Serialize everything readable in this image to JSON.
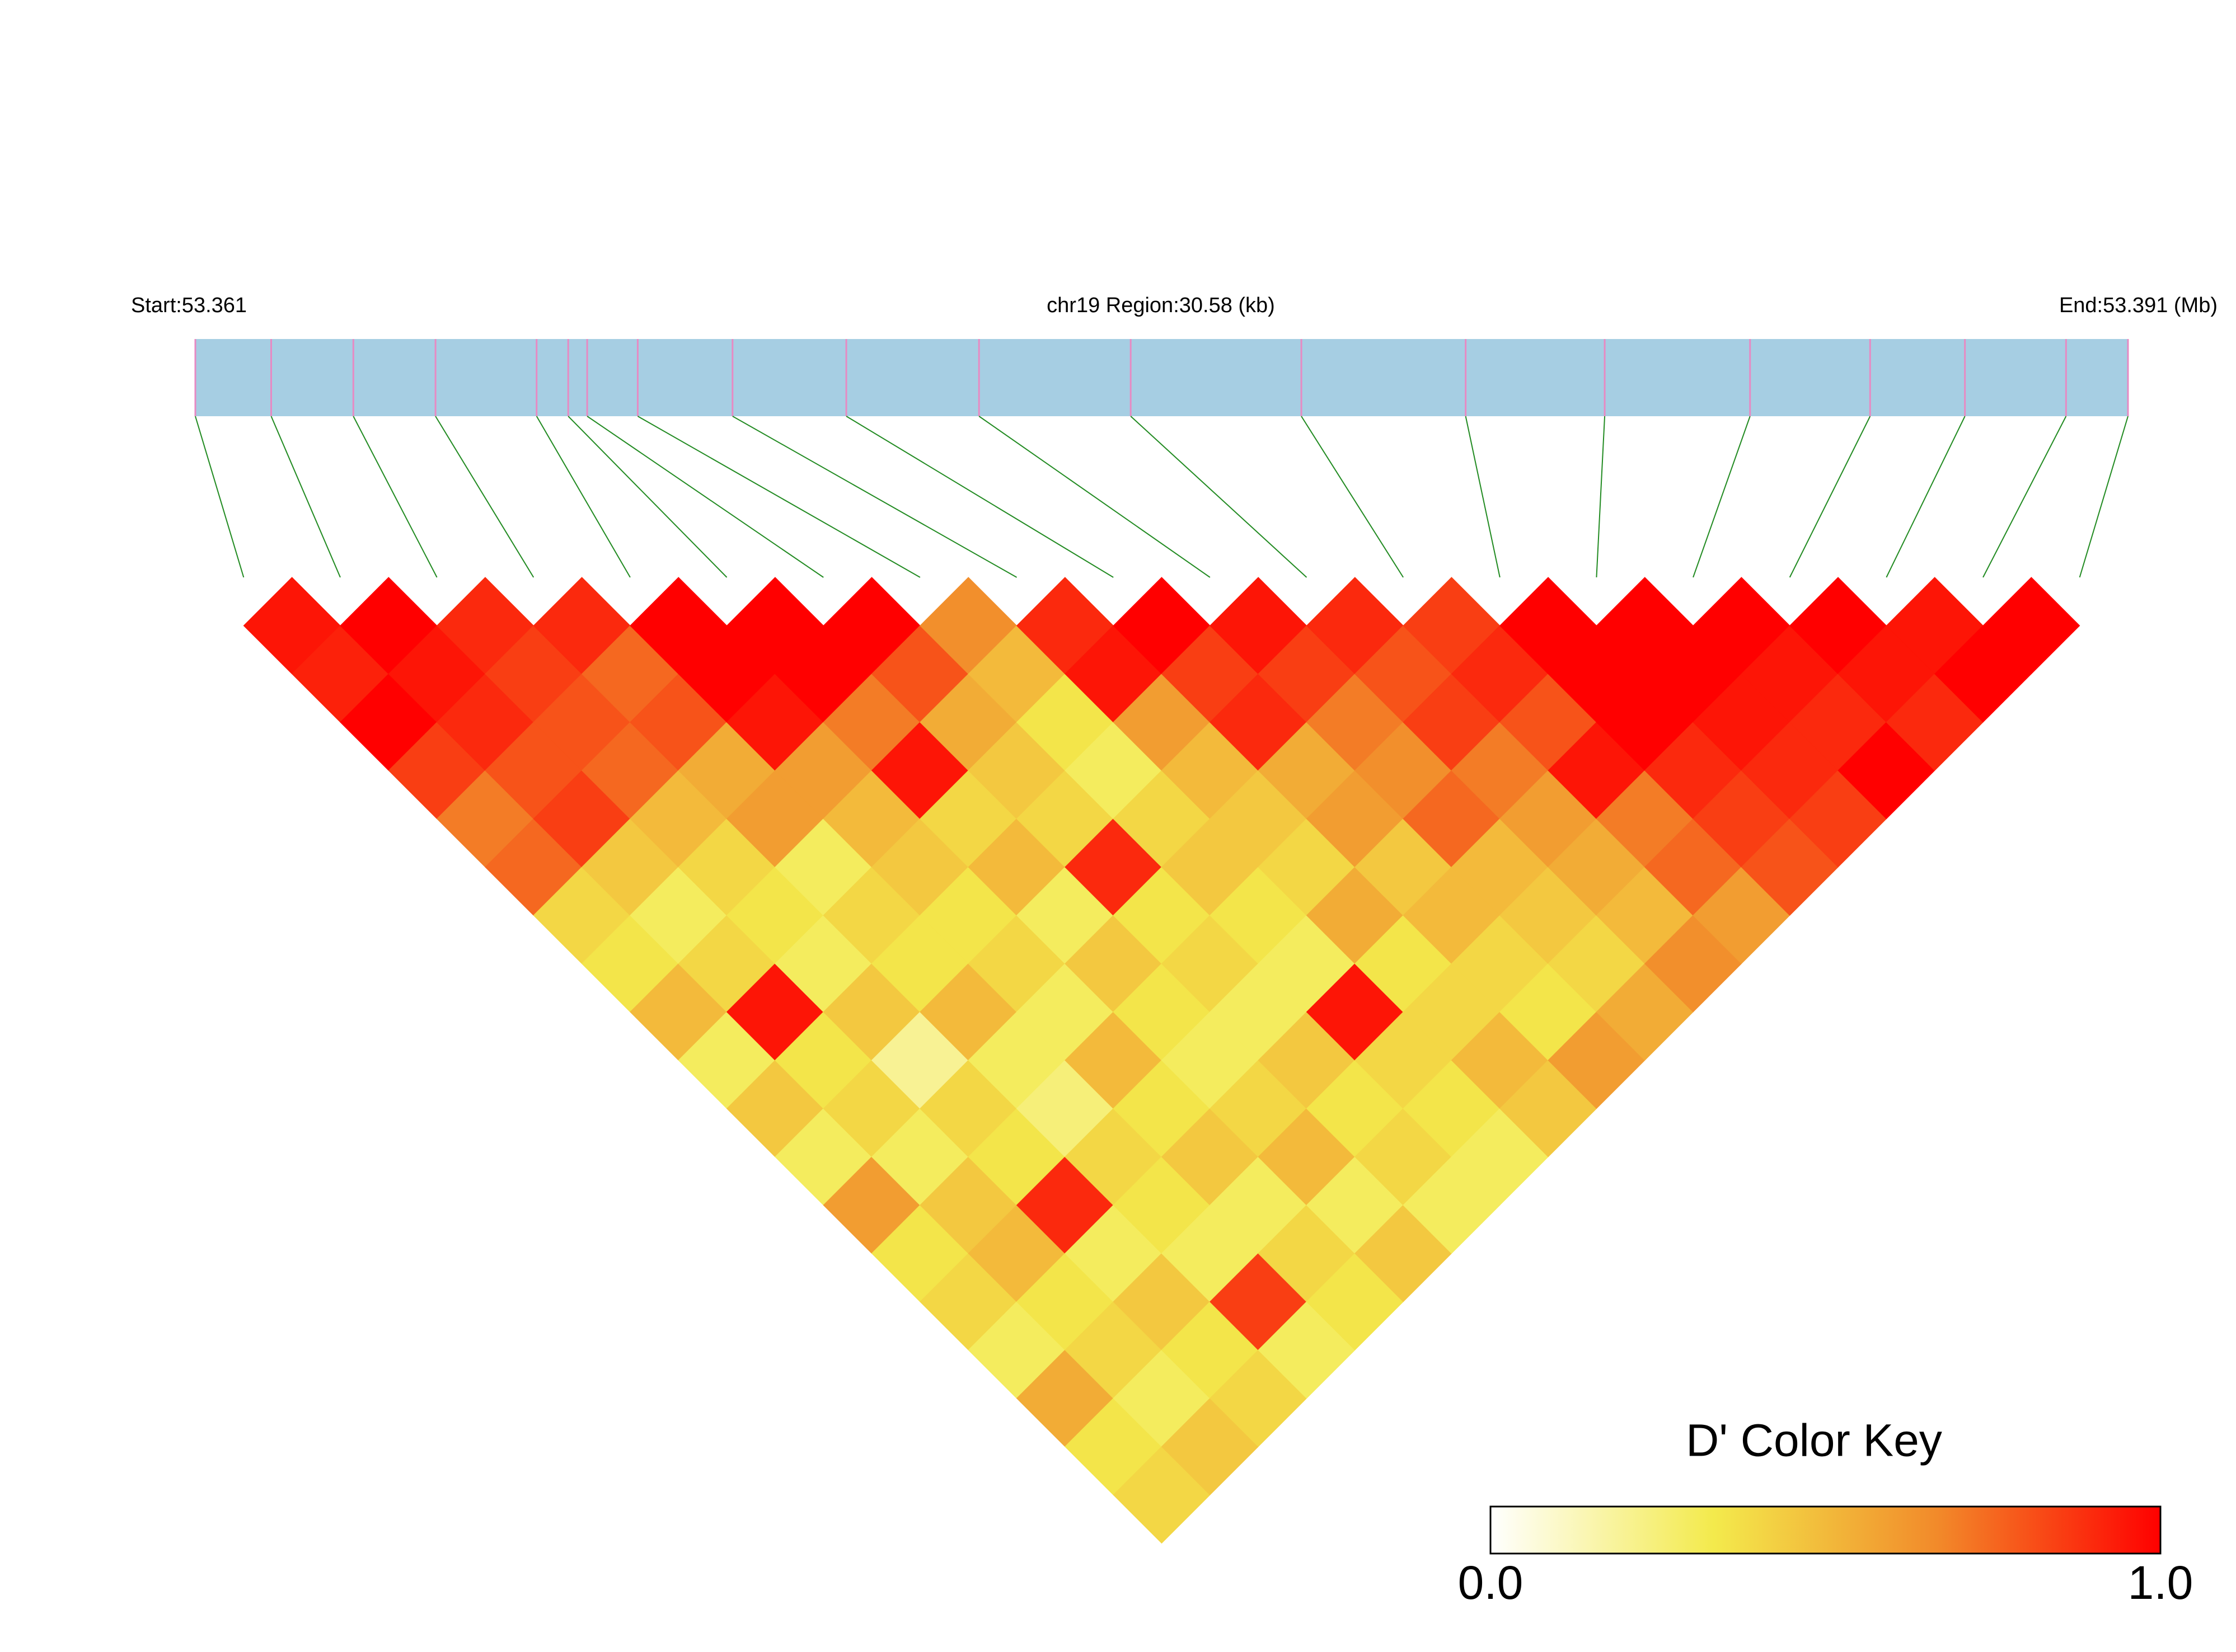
{
  "chart_data": {
    "type": "ld_heatmap",
    "start_label": "Start:53.361",
    "region_label": "chr19 Region:30.58 (kb)",
    "end_label": "End:53.391 (Mb)",
    "colorbar_title": "D' Color Key",
    "clim": [
      0,
      1
    ],
    "cticks": [
      {
        "value": 0,
        "label": "0.0"
      },
      {
        "value": 1,
        "label": "1.0"
      }
    ],
    "colormap": [
      "#ffffff",
      "#f3ea4c",
      "#f28a2a",
      "#ff0000"
    ],
    "track_color": "#a6cee3",
    "snp_color": "#e78ac3",
    "link_color": "#228b22",
    "xlim": [
      0,
      30.58
    ],
    "snp_positions": [
      0,
      1.2,
      2.5,
      3.8,
      5.4,
      5.9,
      6.2,
      7.0,
      8.5,
      10.3,
      12.4,
      14.8,
      17.5,
      20.1,
      22.3,
      24.6,
      26.5,
      28.0,
      29.6,
      30.58
    ],
    "values": [
      [
        0.95,
        0.92,
        1,
        0.85,
        0.7,
        0.75,
        0.4,
        0.35,
        0.5,
        0.3,
        0.45,
        0.3,
        0.6,
        0.35,
        0.4,
        0.3,
        0.55,
        0.35,
        0.4
      ],
      [
        1,
        0.95,
        0.9,
        0.8,
        0.85,
        0.45,
        0.3,
        0.4,
        0.95,
        0.35,
        0.4,
        0.3,
        0.45,
        0.5,
        0.35,
        0.4,
        0.3,
        0.45
      ],
      [
        0.9,
        0.85,
        0.8,
        0.75,
        0.5,
        0.4,
        0.35,
        0.3,
        0.45,
        0.2,
        0.4,
        0.35,
        0.9,
        0.3,
        0.45,
        0.35,
        0.4
      ],
      [
        0.9,
        0.75,
        0.8,
        0.55,
        0.6,
        0.3,
        0.4,
        0.35,
        0.5,
        0.3,
        0.25,
        0.4,
        0.35,
        0.3,
        0.85,
        0.3
      ],
      [
        1,
        1,
        0.95,
        0.6,
        0.5,
        0.45,
        0.35,
        0.4,
        0.3,
        0.5,
        0.35,
        0.45,
        0.3,
        0.4,
        0.35
      ],
      [
        1,
        1,
        0.7,
        0.95,
        0.4,
        0.5,
        0.3,
        0.45,
        0.35,
        0.3,
        0.4,
        0.5,
        0.3,
        0.45
      ],
      [
        1,
        0.8,
        0.55,
        0.45,
        0.4,
        0.9,
        0.35,
        0.4,
        0.3,
        0.45,
        0.35,
        0.4,
        0.3
      ],
      [
        0.65,
        0.5,
        0.35,
        0.3,
        0.4,
        0.45,
        0.35,
        0.3,
        0.95,
        0.4,
        0.35,
        0.3
      ],
      [
        0.9,
        0.95,
        0.6,
        0.5,
        0.45,
        0.4,
        0.55,
        0.35,
        0.4,
        0.5,
        0.45
      ],
      [
        1,
        0.85,
        0.9,
        0.55,
        0.6,
        0.45,
        0.5,
        0.4,
        0.35,
        0.6
      ],
      [
        0.95,
        0.85,
        0.7,
        0.65,
        0.75,
        0.5,
        0.45,
        0.4,
        0.55
      ],
      [
        0.9,
        0.8,
        0.85,
        0.7,
        0.6,
        0.55,
        0.5,
        0.65
      ],
      [
        0.85,
        0.9,
        0.8,
        0.95,
        0.7,
        0.75,
        0.6
      ],
      [
        1,
        1,
        1,
        0.9,
        0.85,
        0.8
      ],
      [
        1,
        1,
        0.95,
        0.9,
        0.85
      ],
      [
        1,
        0.95,
        0.9,
        1
      ],
      [
        1,
        0.95,
        0.9
      ],
      [
        0.95,
        1
      ],
      [
        1
      ]
    ]
  }
}
